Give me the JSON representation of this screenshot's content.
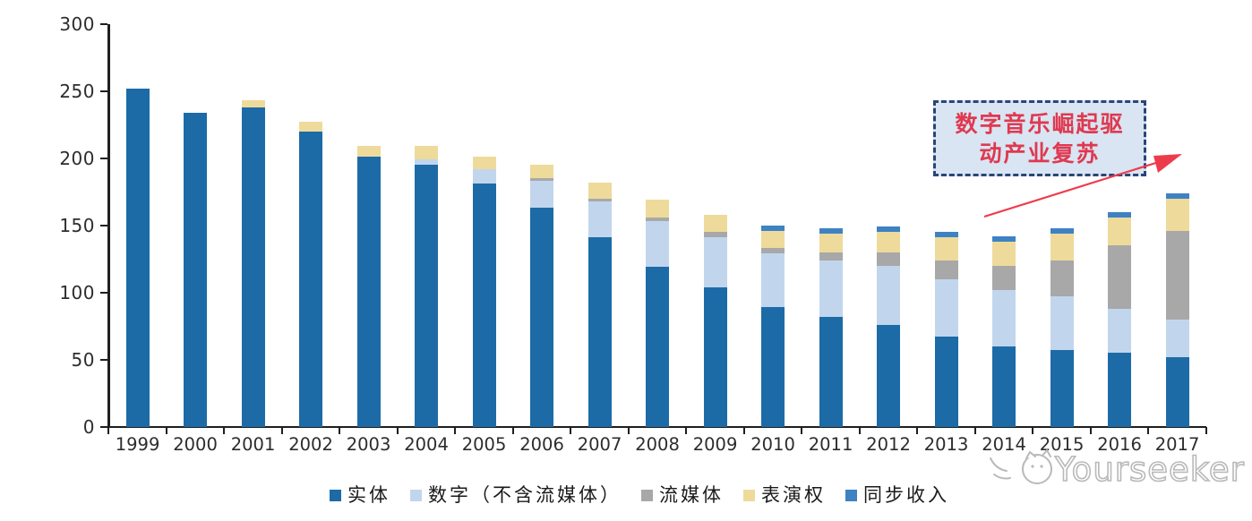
{
  "chart_data": {
    "type": "bar",
    "stacked": true,
    "title": "",
    "xlabel": "",
    "ylabel": "",
    "grid": false,
    "legend_position": "bottom",
    "ylim": [
      0,
      300
    ],
    "yticks": [
      0,
      50,
      100,
      150,
      200,
      250,
      300
    ],
    "categories": [
      "1999",
      "2000",
      "2001",
      "2002",
      "2003",
      "2004",
      "2005",
      "2006",
      "2007",
      "2008",
      "2009",
      "2010",
      "2011",
      "2012",
      "2013",
      "2014",
      "2015",
      "2016",
      "2017"
    ],
    "series": [
      {
        "name": "实体",
        "color": "#1c6ba7",
        "values": [
          252,
          234,
          238,
          220,
          201,
          195,
          181,
          163,
          141,
          119,
          104,
          89,
          82,
          76,
          67,
          60,
          57,
          55,
          52
        ]
      },
      {
        "name": "数字（不含流媒体）",
        "color": "#c1d6ed",
        "values": [
          0,
          0,
          0,
          0,
          0,
          4,
          11,
          20,
          27,
          34,
          37,
          40,
          42,
          44,
          43,
          42,
          40,
          33,
          28
        ]
      },
      {
        "name": "流媒体",
        "color": "#a8a8a8",
        "values": [
          0,
          0,
          0,
          0,
          0,
          0,
          0,
          2,
          2,
          3,
          4,
          4,
          6,
          10,
          14,
          18,
          27,
          47,
          66
        ]
      },
      {
        "name": "表演权",
        "color": "#eeda9b",
        "values": [
          0,
          0,
          5,
          7,
          8,
          10,
          9,
          10,
          12,
          13,
          13,
          13,
          14,
          15,
          17,
          18,
          20,
          21,
          24
        ]
      },
      {
        "name": "同步收入",
        "color": "#3e82c4",
        "values": [
          0,
          0,
          0,
          0,
          0,
          0,
          0,
          0,
          0,
          0,
          0,
          4,
          4,
          4,
          4,
          4,
          4,
          4,
          4
        ]
      }
    ],
    "totals": [
      252,
      234,
      243,
      227,
      209,
      209,
      201,
      195,
      182,
      169,
      158,
      150,
      148,
      149,
      145,
      142,
      148,
      160,
      174
    ]
  },
  "annotation": {
    "text": "数字音乐崛起驱动产业复苏",
    "lines": [
      "数字音乐崛起驱",
      "动产业复苏"
    ],
    "fill_color": "#d9e5f2",
    "border_color": "#2b4576",
    "text_color": "#df3950",
    "arrow_color": "#ee3b4b"
  },
  "watermark": {
    "text": "Yourseeker",
    "color": "#b9b9b9"
  },
  "axis": {
    "text_color": "#2d2d2d",
    "line_color": "#1f1f1f"
  }
}
